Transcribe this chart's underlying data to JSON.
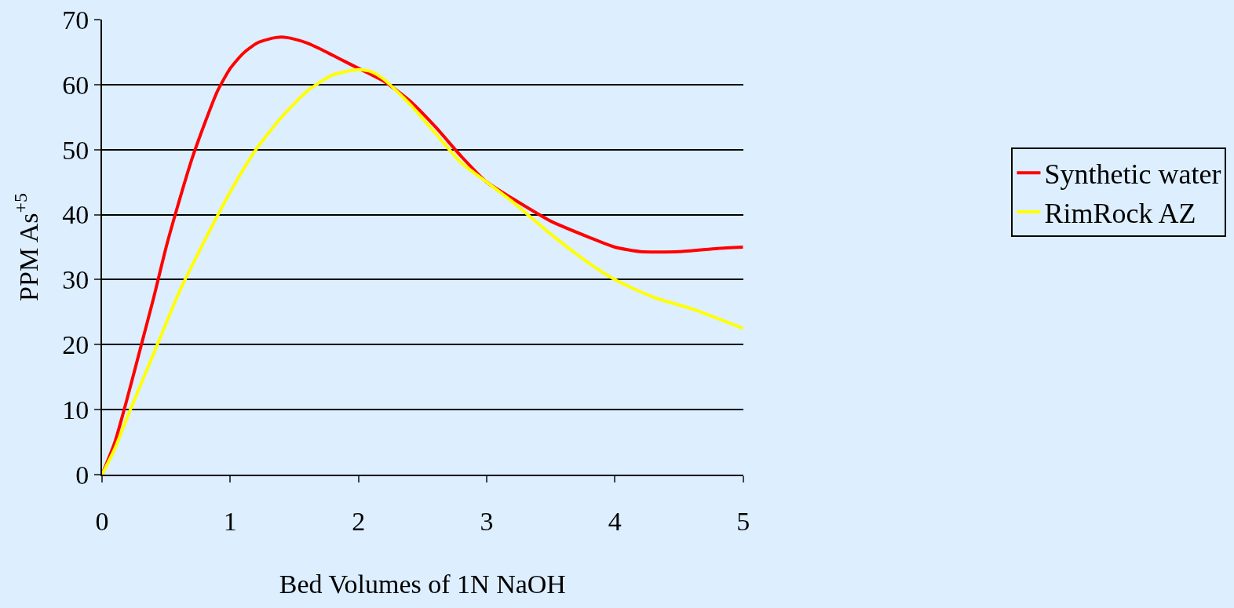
{
  "chart_data": {
    "type": "line",
    "xlabel": "Bed Volumes of 1N NaOH",
    "ylabel": "PPM As$^{+5}$",
    "xlim": [
      0,
      5
    ],
    "xticks": [
      0,
      1,
      2,
      3,
      4,
      5
    ],
    "ylim": [
      0,
      70
    ],
    "yticks": [
      0,
      10,
      20,
      30,
      40,
      50,
      60,
      70
    ],
    "grid": "y",
    "legend": "right",
    "marker": "none",
    "line_style": "solid",
    "series": [
      {
        "name": "Synthetic water",
        "color": "#ff0000",
        "x": [
          0,
          0.1,
          0.2,
          0.3,
          0.4,
          0.5,
          0.6,
          0.7,
          0.8,
          0.9,
          1.0,
          1.1,
          1.2,
          1.3,
          1.4,
          1.5,
          1.6,
          1.7,
          1.8,
          1.9,
          2.0,
          2.2,
          2.4,
          2.6,
          2.8,
          3.0,
          3.2,
          3.5,
          3.8,
          4.0,
          4.2,
          4.5,
          4.8,
          5
        ],
        "values": [
          0,
          5,
          12,
          19.5,
          27,
          35,
          42,
          48.5,
          54,
          59,
          62.5,
          64.8,
          66.3,
          67,
          67.3,
          67,
          66.4,
          65.5,
          64.5,
          63.5,
          62.5,
          60.5,
          57.5,
          53.5,
          49,
          45,
          42.5,
          39,
          36.5,
          35,
          34.3,
          34.3,
          34.8,
          35
        ]
      },
      {
        "name": "RimRock AZ",
        "color": "#ffff00",
        "x": [
          0,
          0.1,
          0.2,
          0.4,
          0.6,
          0.8,
          1.0,
          1.2,
          1.4,
          1.6,
          1.8,
          2.0,
          2.1,
          2.2,
          2.4,
          2.6,
          2.8,
          3.0,
          3.2,
          3.5,
          3.8,
          4.0,
          4.3,
          4.6,
          5
        ],
        "values": [
          0,
          4,
          9,
          18.5,
          28,
          36,
          43.5,
          50,
          55,
          59,
          61.5,
          62.3,
          62,
          60.8,
          57,
          52.5,
          48,
          45,
          42,
          37,
          32.5,
          30,
          27.3,
          25.5,
          22.5
        ]
      }
    ]
  }
}
